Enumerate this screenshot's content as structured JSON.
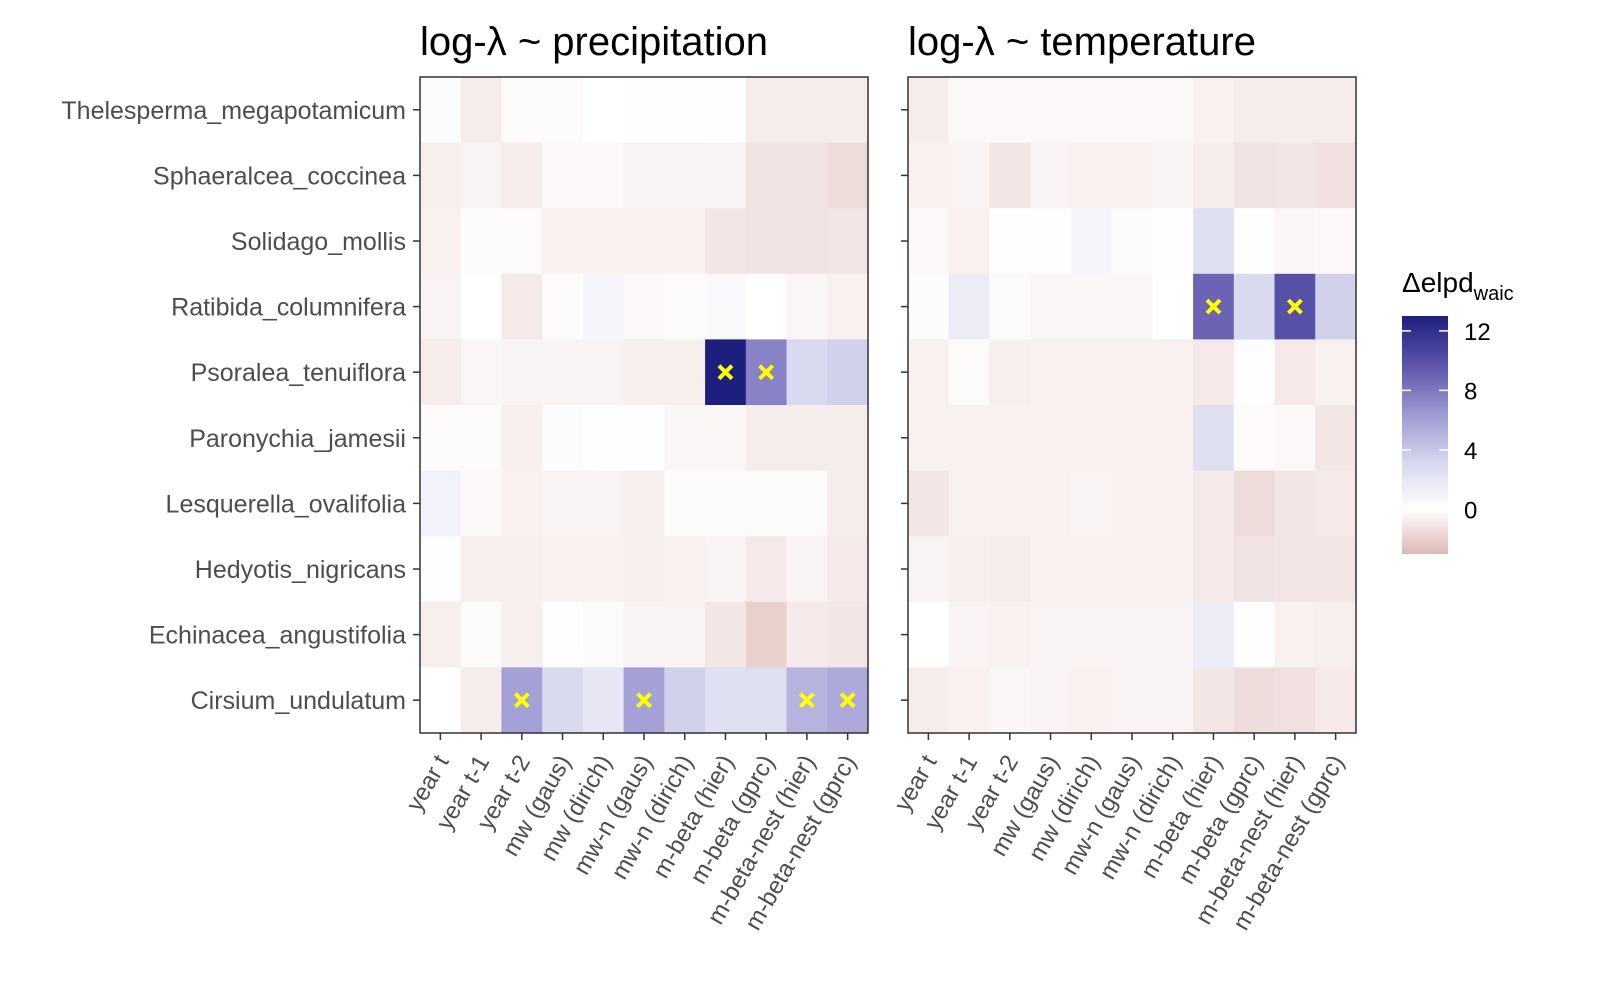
{
  "chart_data": {
    "type": "heatmap",
    "legend": {
      "title": "Δelpd",
      "title_subscript": "waic",
      "ticks": [
        0,
        4,
        8,
        12
      ],
      "range": [
        -3,
        13
      ],
      "placement": "right",
      "colors": {
        "low": "#dcb8b4",
        "mid": "#ffffff",
        "high": "#1c1f7e"
      }
    },
    "grid": false,
    "marker_color": "#ffff00",
    "rows": [
      "Thelesperma_megapotamicum",
      "Sphaeralcea_coccinea",
      "Solidago_mollis",
      "Ratibida_columnifera",
      "Psoralea_tenuiflora",
      "Paronychia_jamesii",
      "Lesquerella_ovalifolia",
      "Hedyotis_nigricans",
      "Echinacea_angustifolia",
      "Cirsium_undulatum"
    ],
    "columns": [
      "year t",
      "year t-1",
      "year t-2",
      "mw (gaus)",
      "mw (dirich)",
      "mw-n (gaus)",
      "mw-n (dirich)",
      "m-beta (hier)",
      "m-beta (gprc)",
      "m-beta-nest (hier)",
      "m-beta-nest (gprc)"
    ],
    "panels": [
      {
        "title": "log-λ ~ precipitation",
        "values": [
          [
            0.2,
            -0.8,
            -0.2,
            -0.2,
            0,
            -0.1,
            -0.1,
            0.1,
            -0.8,
            -0.8,
            -0.8
          ],
          [
            -0.7,
            -0.5,
            -0.8,
            -0.3,
            -0.3,
            -0.5,
            -0.5,
            -0.5,
            -1.2,
            -1.2,
            -1.5
          ],
          [
            -0.6,
            0.2,
            -0.2,
            -0.6,
            -0.6,
            -0.6,
            -0.6,
            -1.0,
            -1.2,
            -1.2,
            -1.0
          ],
          [
            -0.5,
            0,
            -0.9,
            -0.2,
            0.8,
            -0.3,
            -0.2,
            0.5,
            0,
            -0.4,
            -0.6
          ],
          [
            -0.8,
            -0.4,
            -0.5,
            -0.5,
            -0.5,
            -0.7,
            -0.7,
            13,
            7.5,
            3,
            3.5
          ],
          [
            -0.2,
            -0.2,
            -0.7,
            0.2,
            0.1,
            0.1,
            -0.4,
            -0.4,
            -0.8,
            -0.8,
            -0.8
          ],
          [
            1.0,
            -0.3,
            -0.6,
            -0.5,
            -0.5,
            -0.7,
            -0.2,
            -0.2,
            -0.2,
            -0.2,
            -0.8
          ],
          [
            -0.1,
            -0.7,
            -0.7,
            -0.6,
            -0.6,
            -0.7,
            -0.6,
            -0.5,
            -0.9,
            -0.5,
            -0.9
          ],
          [
            -0.7,
            -0.2,
            -0.7,
            0.1,
            -0.2,
            -0.5,
            -0.5,
            -1.0,
            -2.0,
            -0.9,
            -1.0
          ],
          [
            0,
            -0.8,
            6.0,
            3.0,
            2.0,
            6.0,
            3.5,
            2.5,
            2.5,
            5.0,
            5.5
          ]
        ],
        "markers": [
          [
            4,
            7
          ],
          [
            4,
            8
          ],
          [
            9,
            2
          ],
          [
            9,
            5
          ],
          [
            9,
            9
          ],
          [
            9,
            10
          ]
        ]
      },
      {
        "title": "log-λ ~ temperature",
        "values": [
          [
            -0.8,
            -0.3,
            -0.3,
            -0.3,
            -0.3,
            -0.3,
            -0.3,
            -0.6,
            -0.8,
            -0.8,
            -0.8
          ],
          [
            -0.6,
            -0.5,
            -1.0,
            -0.5,
            -0.6,
            -0.6,
            -0.5,
            -0.8,
            -1.2,
            -1.0,
            -1.3
          ],
          [
            -0.3,
            -0.6,
            0.1,
            0.1,
            0.8,
            0.2,
            -0.1,
            2.5,
            0.1,
            -0.4,
            -0.3
          ],
          [
            -0.2,
            1.5,
            -0.2,
            -0.4,
            -0.4,
            -0.4,
            0,
            9,
            3,
            10,
            3.5
          ],
          [
            -0.6,
            -0.2,
            -0.7,
            -0.6,
            -0.6,
            -0.6,
            -0.6,
            -0.9,
            -0.1,
            -0.9,
            -0.6
          ],
          [
            -0.6,
            -0.6,
            -0.6,
            -0.6,
            -0.6,
            -0.6,
            -0.6,
            2.5,
            -0.2,
            -0.3,
            -1.0
          ],
          [
            -1.0,
            -0.6,
            -0.6,
            -0.6,
            -0.5,
            -0.6,
            -0.6,
            -0.9,
            -1.5,
            -1.0,
            -0.9
          ],
          [
            -0.5,
            -0.7,
            -0.8,
            -0.6,
            -0.6,
            -0.6,
            -0.6,
            -0.9,
            -1.2,
            -1.1,
            -1.1
          ],
          [
            0,
            -0.5,
            -0.6,
            -0.5,
            -0.5,
            -0.5,
            -0.5,
            1.5,
            0.1,
            -0.6,
            -0.7
          ],
          [
            -0.8,
            -0.6,
            -0.4,
            -0.5,
            -0.6,
            -0.5,
            -0.5,
            -1.0,
            -1.5,
            -1.3,
            -0.9
          ]
        ],
        "markers": [
          [
            3,
            7
          ],
          [
            3,
            9
          ]
        ]
      }
    ]
  }
}
